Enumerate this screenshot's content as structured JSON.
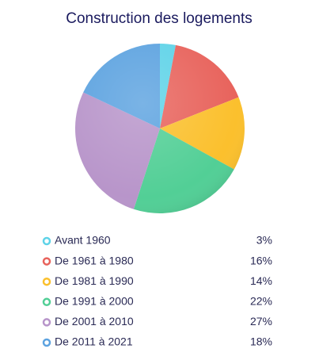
{
  "chart_data": {
    "type": "pie",
    "title": "Construction des logements",
    "categories": [
      "Avant 1960",
      "De 1961 à 1980",
      "De 1981 à 1990",
      "De 1991 à 2000",
      "De 2001 à 2010",
      "De 2011 à 2021"
    ],
    "values": [
      3,
      16,
      14,
      22,
      27,
      18
    ],
    "value_labels": [
      "3%",
      "16%",
      "14%",
      "22%",
      "27%",
      "18%"
    ],
    "colors": [
      "#5fd3e8",
      "#e8635c",
      "#fbc02d",
      "#52cf96",
      "#b895ca",
      "#5da3e0"
    ]
  }
}
